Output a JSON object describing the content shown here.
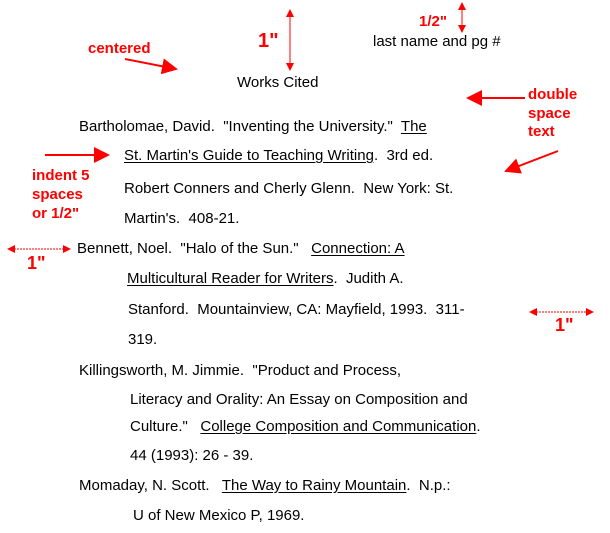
{
  "header": {
    "running_head": "last name and pg #",
    "title": "Works Cited"
  },
  "annotations": {
    "top_margin": "1\"",
    "header_margin": "1/2\"",
    "centered": "centered",
    "double_space": [
      "double",
      "space",
      "text"
    ],
    "indent": [
      "indent 5",
      "spaces",
      "or 1/2\""
    ],
    "left_margin": "1\"",
    "right_margin": "1\"",
    "color": "#ff0000"
  },
  "entries": [
    {
      "lines": [
        [
          {
            "text": "Bartholomae, David.  \"Inventing the University.\"  "
          },
          {
            "text": "The",
            "u": true
          }
        ],
        [
          {
            "text": "St. Martin's Guide to Teaching Writing",
            "u": true
          },
          {
            "text": ".  3rd ed."
          }
        ],
        [
          {
            "text": "Robert Conners and Cherly Glenn.  New York: St."
          }
        ],
        [
          {
            "text": "Martin's.  408-21."
          }
        ]
      ]
    },
    {
      "lines": [
        [
          {
            "text": "Bennett, Noel.  \"Halo of the Sun.\"   "
          },
          {
            "text": "Connection: A",
            "u": true
          }
        ],
        [
          {
            "text": "Multicultural Reader for Writers",
            "u": true
          },
          {
            "text": ".  Judith A."
          }
        ],
        [
          {
            "text": "Stanford.  Mountainview, CA: Mayfield, 1993.  311-"
          }
        ],
        [
          {
            "text": "319."
          }
        ]
      ]
    },
    {
      "lines": [
        [
          {
            "text": "Killingsworth, M. Jimmie.  \"Product and Process,"
          }
        ],
        [
          {
            "text": "Literacy and Orality: An Essay on Composition and"
          }
        ],
        [
          {
            "text": "Culture.\"   "
          },
          {
            "text": "College Composition and Communication",
            "u": true
          },
          {
            "text": "."
          }
        ],
        [
          {
            "text": "44 (1993): 26 - 39."
          }
        ]
      ]
    },
    {
      "lines": [
        [
          {
            "text": "Momaday, N. Scott.   "
          },
          {
            "text": "The Way to Rainy Mountain",
            "u": true
          },
          {
            "text": ".  N.p.:"
          }
        ],
        [
          {
            "text": "U of New Mexico P, 1969."
          }
        ]
      ]
    }
  ]
}
